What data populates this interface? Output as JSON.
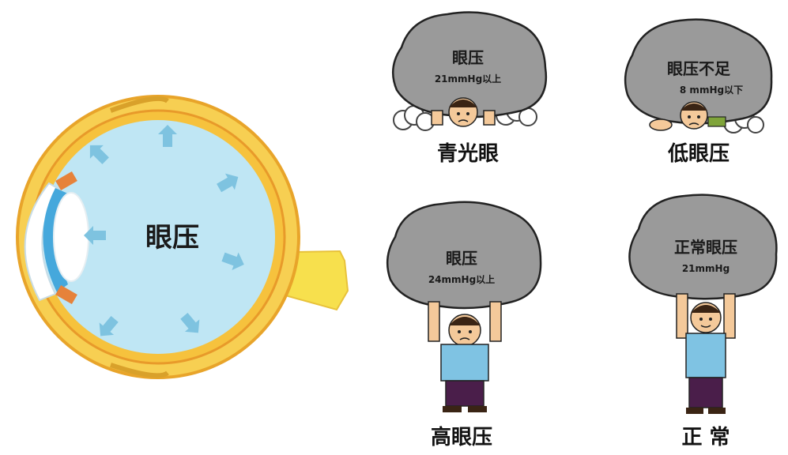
{
  "eye": {
    "label": "眼压",
    "colors": {
      "fluid": "#bfe6f4",
      "arrow": "#7ec3e0",
      "sclera": "#f7c948",
      "nerve": "#f7e04d",
      "rim": "#e8a42a"
    }
  },
  "panels": [
    {
      "id": "glaucoma",
      "rock_title": "眼压",
      "rock_sub": "21mmHg以上",
      "caption": "青光眼"
    },
    {
      "id": "low",
      "rock_title": "眼压不足",
      "rock_sub": "8 mmHg以下",
      "caption": "低眼压"
    },
    {
      "id": "high",
      "rock_title": "眼压",
      "rock_sub": "24mmHg以上",
      "caption": "高眼压"
    },
    {
      "id": "normal",
      "rock_title": "正常眼压",
      "rock_sub": "21mmHg",
      "caption": "正 常"
    }
  ],
  "colors": {
    "rock": "#9a9a9a",
    "rock_edge": "#222222",
    "shirt": "#7fc3e3",
    "pants": "#4a1e4a",
    "skin": "#f4c99a",
    "hair": "#3a2414"
  }
}
